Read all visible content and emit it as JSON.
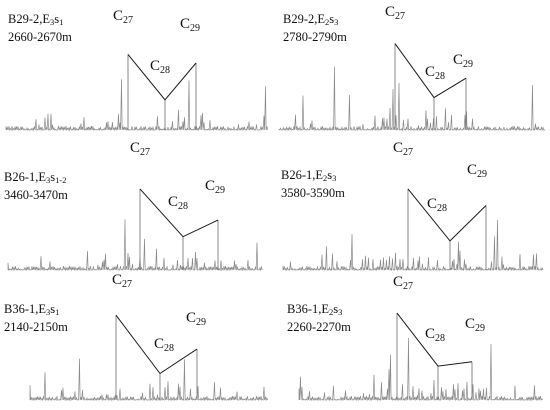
{
  "panels": [
    {
      "well": "B29-2,E",
      "unit_sub": "3",
      "unit_base": "s",
      "layer_sub": "1",
      "depth": "2660-2670m",
      "labels": [
        "C",
        "27",
        "C",
        "28",
        "C",
        "29"
      ]
    },
    {
      "well": "B29-2,E",
      "unit_sub": "2",
      "unit_base": "s",
      "layer_sub": "3",
      "depth": "2780-2790m",
      "labels": [
        "C",
        "27",
        "C",
        "28",
        "C",
        "29"
      ]
    },
    {
      "well": "B26-1,E",
      "unit_sub": "3",
      "unit_base": "s",
      "layer_sub": "1-2",
      "depth": "3460-3470m",
      "labels": [
        "C",
        "27",
        "C",
        "28",
        "C",
        "29"
      ]
    },
    {
      "well": "B26-1,E",
      "unit_sub": "2",
      "unit_base": "s",
      "layer_sub": "3",
      "depth": "3580-3590m",
      "labels": [
        "C",
        "27",
        "C",
        "28",
        "C",
        "29"
      ]
    },
    {
      "well": "B36-1,E",
      "unit_sub": "3",
      "unit_base": "s",
      "layer_sub": "1",
      "depth": "2140-2150m",
      "labels": [
        "C",
        "27",
        "C",
        "28",
        "C",
        "29"
      ]
    },
    {
      "well": "B36-1,E",
      "unit_sub": "2",
      "unit_base": "s",
      "layer_sub": "3",
      "depth": "2260-2270m",
      "labels": [
        "C",
        "27",
        "C",
        "28",
        "C",
        "29"
      ]
    }
  ],
  "chart_data": [
    {
      "type": "line",
      "title": "B29-2,E3s1 2660-2670m",
      "x": [
        "C27",
        "C28",
        "C29"
      ],
      "series": [
        {
          "values": [
            0.7,
            0.28,
            0.62
          ]
        }
      ]
    },
    {
      "type": "line",
      "title": "B29-2,E2s3 2780-2790m",
      "x": [
        "C27",
        "C28",
        "C29"
      ],
      "series": [
        {
          "values": [
            0.8,
            0.3,
            0.48
          ]
        }
      ]
    },
    {
      "type": "line",
      "title": "B26-1,E3s1-2 3460-3470m",
      "x": [
        "C27",
        "C28",
        "C29"
      ],
      "series": [
        {
          "values": [
            0.78,
            0.32,
            0.48
          ]
        }
      ]
    },
    {
      "type": "line",
      "title": "B26-1,E2s3 3580-3590m",
      "x": [
        "C27",
        "C28",
        "C29"
      ],
      "series": [
        {
          "values": [
            0.78,
            0.28,
            0.62
          ]
        }
      ]
    },
    {
      "type": "line",
      "title": "B36-1,E3s1 2140-2150m",
      "x": [
        "C27",
        "C28",
        "C29"
      ],
      "series": [
        {
          "values": [
            0.8,
            0.25,
            0.48
          ]
        }
      ]
    },
    {
      "type": "line",
      "title": "B36-1,E2s3 2260-2270m",
      "x": [
        "C27",
        "C28",
        "C29"
      ],
      "series": [
        {
          "values": [
            0.82,
            0.32,
            0.36
          ]
        }
      ]
    }
  ]
}
